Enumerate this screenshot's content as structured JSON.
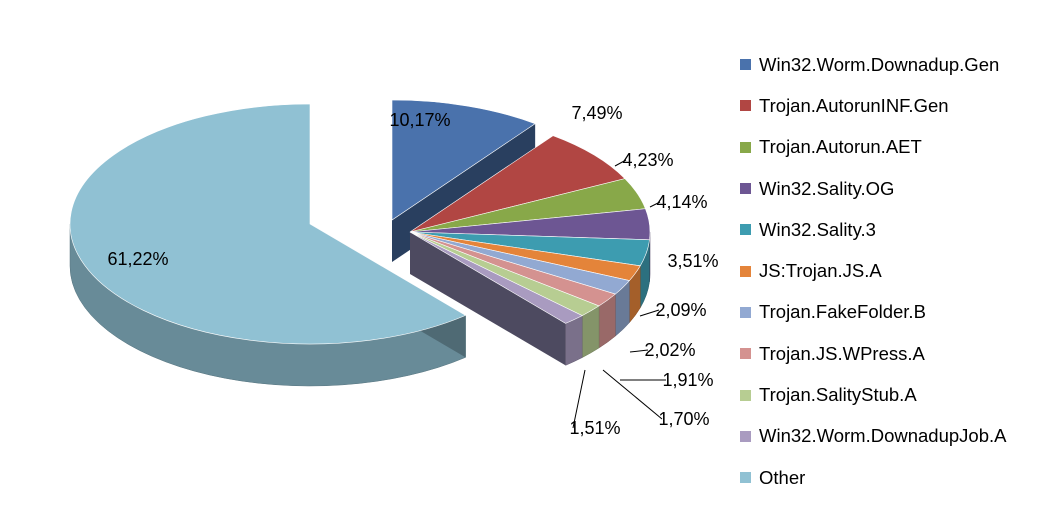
{
  "chart_data": {
    "type": "pie",
    "title": "",
    "legend_position": "right",
    "series": [
      {
        "name": "Win32.Worm.Downadup.Gen",
        "value": 10.17,
        "label": "10,17%",
        "color": "#4a72ac"
      },
      {
        "name": "Trojan.AutorunINF.Gen",
        "value": 7.49,
        "label": "7,49%",
        "color": "#b14643"
      },
      {
        "name": "Trojan.Autorun.AET",
        "value": 4.23,
        "label": "4,23%",
        "color": "#88a849"
      },
      {
        "name": "Win32.Sality.OG",
        "value": 4.14,
        "label": "4,14%",
        "color": "#6d5693"
      },
      {
        "name": "Win32.Sality.3",
        "value": 3.51,
        "label": "3,51%",
        "color": "#3d9cb0"
      },
      {
        "name": "JS:Trojan.JS.A",
        "value": 2.09,
        "label": "2,09%",
        "color": "#e4843a"
      },
      {
        "name": "Trojan.FakeFolder.B",
        "value": 2.02,
        "label": "2,02%",
        "color": "#92a9d2"
      },
      {
        "name": "Trojan.JS.WPress.A",
        "value": 1.91,
        "label": "1,91%",
        "color": "#d49290"
      },
      {
        "name": "Trojan.SalityStub.A",
        "value": 1.7,
        "label": "1,70%",
        "color": "#b7cd92"
      },
      {
        "name": "Win32.Worm.DownadupJob.A",
        "value": 1.51,
        "label": "1,51%",
        "color": "#a99bc0"
      },
      {
        "name": "Other",
        "value": 61.22,
        "label": "61,22%",
        "color": "#90c1d3"
      }
    ]
  }
}
